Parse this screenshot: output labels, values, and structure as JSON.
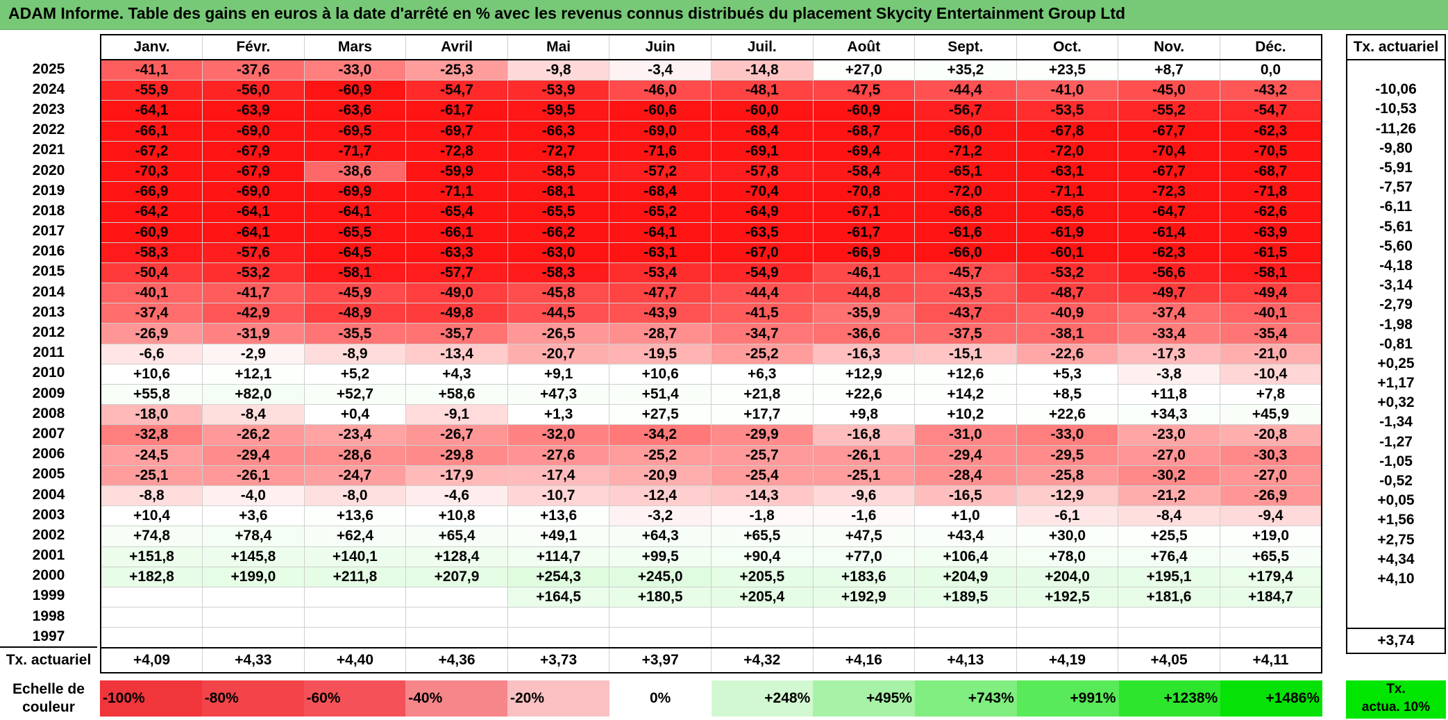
{
  "title": "ADAM Informe. Table des gains en euros à la date d'arrêté en % avec les revenus connus distribués du placement Skycity Entertainment Group Ltd",
  "months": [
    "Janv.",
    "Févr.",
    "Mars",
    "Avril",
    "Mai",
    "Juin",
    "Juil.",
    "Août",
    "Sept.",
    "Oct.",
    "Nov.",
    "Déc."
  ],
  "actuarial_header": "Tx. actuariel",
  "rows": [
    {
      "year": "2025",
      "values": [
        "-41,1",
        "-37,6",
        "-33,0",
        "-25,3",
        "-9,8",
        "-3,4",
        "-14,8",
        "+27,0",
        "+35,2",
        "+23,5",
        "+8,7",
        "0,0"
      ],
      "rate": ""
    },
    {
      "year": "2024",
      "values": [
        "-55,9",
        "-56,0",
        "-60,9",
        "-54,7",
        "-53,9",
        "-46,0",
        "-48,1",
        "-47,5",
        "-44,4",
        "-41,0",
        "-45,0",
        "-43,2"
      ],
      "rate": "-10,06"
    },
    {
      "year": "2023",
      "values": [
        "-64,1",
        "-63,9",
        "-63,6",
        "-61,7",
        "-59,5",
        "-60,6",
        "-60,0",
        "-60,9",
        "-56,7",
        "-53,5",
        "-55,2",
        "-54,7"
      ],
      "rate": "-10,53"
    },
    {
      "year": "2022",
      "values": [
        "-66,1",
        "-69,0",
        "-69,5",
        "-69,7",
        "-66,3",
        "-69,0",
        "-68,4",
        "-68,7",
        "-66,0",
        "-67,8",
        "-67,7",
        "-62,3"
      ],
      "rate": "-11,26"
    },
    {
      "year": "2021",
      "values": [
        "-67,2",
        "-67,9",
        "-71,7",
        "-72,8",
        "-72,7",
        "-71,6",
        "-69,1",
        "-69,4",
        "-71,2",
        "-72,0",
        "-70,4",
        "-70,5"
      ],
      "rate": "-9,80"
    },
    {
      "year": "2020",
      "values": [
        "-70,3",
        "-67,9",
        "-38,6",
        "-59,9",
        "-58,5",
        "-57,2",
        "-57,8",
        "-58,4",
        "-65,1",
        "-63,1",
        "-67,7",
        "-68,7"
      ],
      "rate": "-5,91"
    },
    {
      "year": "2019",
      "values": [
        "-66,9",
        "-69,0",
        "-69,9",
        "-71,1",
        "-68,1",
        "-68,4",
        "-70,4",
        "-70,8",
        "-72,0",
        "-71,1",
        "-72,3",
        "-71,8"
      ],
      "rate": "-7,57"
    },
    {
      "year": "2018",
      "values": [
        "-64,2",
        "-64,1",
        "-64,1",
        "-65,4",
        "-65,5",
        "-65,2",
        "-64,9",
        "-67,1",
        "-66,8",
        "-65,6",
        "-64,7",
        "-62,6"
      ],
      "rate": "-6,11"
    },
    {
      "year": "2017",
      "values": [
        "-60,9",
        "-64,1",
        "-65,5",
        "-66,1",
        "-66,2",
        "-64,1",
        "-63,5",
        "-61,7",
        "-61,6",
        "-61,9",
        "-61,4",
        "-63,9"
      ],
      "rate": "-5,61"
    },
    {
      "year": "2016",
      "values": [
        "-58,3",
        "-57,6",
        "-64,5",
        "-63,3",
        "-63,0",
        "-63,1",
        "-67,0",
        "-66,9",
        "-66,0",
        "-60,1",
        "-62,3",
        "-61,5"
      ],
      "rate": "-5,60"
    },
    {
      "year": "2015",
      "values": [
        "-50,4",
        "-53,2",
        "-58,1",
        "-57,7",
        "-58,3",
        "-53,4",
        "-54,9",
        "-46,1",
        "-45,7",
        "-53,2",
        "-56,6",
        "-58,1"
      ],
      "rate": "-4,18"
    },
    {
      "year": "2014",
      "values": [
        "-40,1",
        "-41,7",
        "-45,9",
        "-49,0",
        "-45,8",
        "-47,7",
        "-44,4",
        "-44,8",
        "-43,5",
        "-48,7",
        "-49,7",
        "-49,4"
      ],
      "rate": "-3,14"
    },
    {
      "year": "2013",
      "values": [
        "-37,4",
        "-42,9",
        "-48,9",
        "-49,8",
        "-44,5",
        "-43,9",
        "-41,5",
        "-35,9",
        "-43,7",
        "-40,9",
        "-37,4",
        "-40,1"
      ],
      "rate": "-2,79"
    },
    {
      "year": "2012",
      "values": [
        "-26,9",
        "-31,9",
        "-35,5",
        "-35,7",
        "-26,5",
        "-28,7",
        "-34,7",
        "-36,6",
        "-37,5",
        "-38,1",
        "-33,4",
        "-35,4"
      ],
      "rate": "-1,98"
    },
    {
      "year": "2011",
      "values": [
        "-6,6",
        "-2,9",
        "-8,9",
        "-13,4",
        "-20,7",
        "-19,5",
        "-25,2",
        "-16,3",
        "-15,1",
        "-22,6",
        "-17,3",
        "-21,0"
      ],
      "rate": "-0,81"
    },
    {
      "year": "2010",
      "values": [
        "+10,6",
        "+12,1",
        "+5,2",
        "+4,3",
        "+9,1",
        "+10,6",
        "+6,3",
        "+12,9",
        "+12,6",
        "+5,3",
        "-3,8",
        "-10,4"
      ],
      "rate": "+0,25"
    },
    {
      "year": "2009",
      "values": [
        "+55,8",
        "+82,0",
        "+52,7",
        "+58,6",
        "+47,3",
        "+51,4",
        "+21,8",
        "+22,6",
        "+14,2",
        "+8,5",
        "+11,8",
        "+7,8"
      ],
      "rate": "+1,17"
    },
    {
      "year": "2008",
      "values": [
        "-18,0",
        "-8,4",
        "+0,4",
        "-9,1",
        "+1,3",
        "+27,5",
        "+17,7",
        "+9,8",
        "+10,2",
        "+22,6",
        "+34,3",
        "+45,9"
      ],
      "rate": "+0,32"
    },
    {
      "year": "2007",
      "values": [
        "-32,8",
        "-26,2",
        "-23,4",
        "-26,7",
        "-32,0",
        "-34,2",
        "-29,9",
        "-16,8",
        "-31,0",
        "-33,0",
        "-23,0",
        "-20,8"
      ],
      "rate": "-1,34"
    },
    {
      "year": "2006",
      "values": [
        "-24,5",
        "-29,4",
        "-28,6",
        "-29,8",
        "-27,6",
        "-25,2",
        "-25,7",
        "-26,1",
        "-29,4",
        "-29,5",
        "-27,0",
        "-30,3"
      ],
      "rate": "-1,27"
    },
    {
      "year": "2005",
      "values": [
        "-25,1",
        "-26,1",
        "-24,7",
        "-17,9",
        "-17,4",
        "-20,9",
        "-25,4",
        "-25,1",
        "-28,4",
        "-25,8",
        "-30,2",
        "-27,0"
      ],
      "rate": "-1,05"
    },
    {
      "year": "2004",
      "values": [
        "-8,8",
        "-4,0",
        "-8,0",
        "-4,6",
        "-10,7",
        "-12,4",
        "-14,3",
        "-9,6",
        "-16,5",
        "-12,9",
        "-21,2",
        "-26,9"
      ],
      "rate": "-0,52"
    },
    {
      "year": "2003",
      "values": [
        "+10,4",
        "+3,6",
        "+13,6",
        "+10,8",
        "+13,6",
        "-3,2",
        "-1,8",
        "-1,6",
        "+1,0",
        "-6,1",
        "-8,4",
        "-9,4"
      ],
      "rate": "+0,05"
    },
    {
      "year": "2002",
      "values": [
        "+74,8",
        "+78,4",
        "+62,4",
        "+65,4",
        "+49,1",
        "+64,3",
        "+65,5",
        "+47,5",
        "+43,4",
        "+30,0",
        "+25,5",
        "+19,0"
      ],
      "rate": "+1,56"
    },
    {
      "year": "2001",
      "values": [
        "+151,8",
        "+145,8",
        "+140,1",
        "+128,4",
        "+114,7",
        "+99,5",
        "+90,4",
        "+77,0",
        "+106,4",
        "+78,0",
        "+76,4",
        "+65,5"
      ],
      "rate": "+2,75"
    },
    {
      "year": "2000",
      "values": [
        "+182,8",
        "+199,0",
        "+211,8",
        "+207,9",
        "+254,3",
        "+245,0",
        "+205,5",
        "+183,6",
        "+204,9",
        "+204,0",
        "+195,1",
        "+179,4"
      ],
      "rate": "+4,34"
    },
    {
      "year": "1999",
      "values": [
        "",
        "",
        "",
        "",
        "+164,5",
        "+180,5",
        "+205,4",
        "+192,9",
        "+189,5",
        "+192,5",
        "+181,6",
        "+184,7"
      ],
      "rate": "+4,10"
    },
    {
      "year": "1998",
      "values": [
        "",
        "",
        "",
        "",
        "",
        "",
        "",
        "",
        "",
        "",
        "",
        ""
      ],
      "rate": ""
    },
    {
      "year": "1997",
      "values": [
        "",
        "",
        "",
        "",
        "",
        "",
        "",
        "",
        "",
        "",
        "",
        ""
      ],
      "rate": ""
    }
  ],
  "totals_label": "Tx. actuariel",
  "totals": [
    "+4,09",
    "+4,33",
    "+4,40",
    "+4,36",
    "+3,73",
    "+3,97",
    "+4,32",
    "+4,16",
    "+4,13",
    "+4,19",
    "+4,05",
    "+4,11"
  ],
  "totals_rate": "+3,74",
  "scale_label_line1": "Echelle de",
  "scale_label_line2": "couleur",
  "scale": [
    {
      "label": "-100%",
      "color": "#f0353b",
      "align": "left"
    },
    {
      "label": "-80%",
      "color": "#f24449",
      "align": "left"
    },
    {
      "label": "-60%",
      "color": "#f45258",
      "align": "left"
    },
    {
      "label": "-40%",
      "color": "#f7868a",
      "align": "left"
    },
    {
      "label": "-20%",
      "color": "#fac0c2",
      "align": "left"
    },
    {
      "label": "0%",
      "color": "#ffffff",
      "align": "center"
    },
    {
      "label": "+248%",
      "color": "#d2f8d2",
      "align": "right"
    },
    {
      "label": "+495%",
      "color": "#a8f2a8",
      "align": "right"
    },
    {
      "label": "+743%",
      "color": "#80ee80",
      "align": "right"
    },
    {
      "label": "+991%",
      "color": "#58ea58",
      "align": "right"
    },
    {
      "label": "+1238%",
      "color": "#2ee52e",
      "align": "right"
    },
    {
      "label": "+1486%",
      "color": "#06e206",
      "align": "right"
    }
  ],
  "scale_right_line1": "Tx.",
  "scale_right_line2": "actua. 10%"
}
